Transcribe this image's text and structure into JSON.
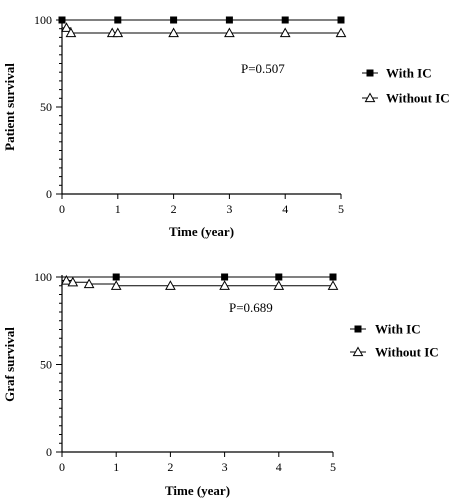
{
  "chart_data": [
    {
      "type": "line",
      "xlabel": "Time (year)",
      "ylabel": "Patient survival",
      "xlim": [
        0,
        5
      ],
      "ylim": [
        0,
        100
      ],
      "x_ticks": [
        0,
        1,
        2,
        3,
        4,
        5
      ],
      "y_ticks": [
        0,
        50,
        100
      ],
      "annotation": "P=0.507",
      "legend_position": "right",
      "series": [
        {
          "name": "With IC",
          "marker": "filled-square",
          "points": [
            [
              0,
              100
            ],
            [
              1,
              100
            ],
            [
              2,
              100
            ],
            [
              3,
              100
            ],
            [
              4,
              100
            ],
            [
              5,
              100
            ]
          ]
        },
        {
          "name": "Without IC",
          "marker": "open-triangle",
          "points": [
            [
              0.08,
              95.5
            ],
            [
              0.16,
              92.5
            ],
            [
              0.9,
              92.5
            ],
            [
              1,
              92.5
            ],
            [
              2,
              92.5
            ],
            [
              3,
              92.5
            ],
            [
              4,
              92.5
            ],
            [
              5,
              92.5
            ]
          ]
        }
      ]
    },
    {
      "type": "line",
      "xlabel": "Time (year)",
      "ylabel": "Graf survival",
      "xlim": [
        0,
        5
      ],
      "ylim": [
        0,
        100
      ],
      "x_ticks": [
        0,
        1,
        2,
        3,
        4,
        5
      ],
      "y_ticks": [
        0,
        50,
        100
      ],
      "annotation": "P=0.689",
      "legend_position": "right",
      "series": [
        {
          "name": "With IC",
          "marker": "filled-square",
          "points": [
            [
              1,
              100
            ],
            [
              3,
              100
            ],
            [
              4,
              100
            ],
            [
              5,
              100
            ]
          ]
        },
        {
          "name": "Without IC",
          "marker": "open-triangle",
          "points": [
            [
              0.08,
              98
            ],
            [
              0.2,
              97
            ],
            [
              0.5,
              96
            ],
            [
              1,
              95
            ],
            [
              2,
              95
            ],
            [
              3,
              95
            ],
            [
              4,
              95
            ],
            [
              5,
              95
            ]
          ]
        }
      ]
    }
  ]
}
